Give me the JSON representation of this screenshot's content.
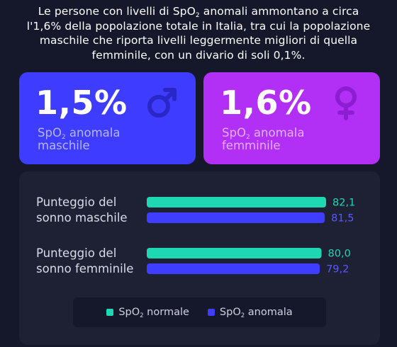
{
  "intro": {
    "line1_a": "Le persone con livelli di SpO",
    "line1_sub": "2",
    "line1_b": " anomali ammontano a circa",
    "line2": "l'1,6% della popolazione totale in Italia,  tra cui la popolazione",
    "line3": "maschile che riporta livelli leggermente migliori di quella",
    "line4": "femminile, con un divario di soli 0,1%."
  },
  "cards": {
    "male": {
      "value": "1,5%",
      "label_pre": "SpO",
      "label_sub": "2",
      "label_post": " anomala",
      "label_line2": "maschile",
      "icon": "male-symbol-icon",
      "color": "#3d3cff"
    },
    "female": {
      "value": "1,6%",
      "label_pre": "SpO",
      "label_sub": "2",
      "label_post": " anomala",
      "label_line2": "femminile",
      "icon": "female-symbol-icon",
      "color": "#b22ff5"
    }
  },
  "chart_data": {
    "type": "bar",
    "orientation": "horizontal",
    "groups": [
      {
        "label_line1": "Punteggio del",
        "label_line2": "sonno maschile",
        "values": [
          {
            "series": "normale",
            "value": 82.1,
            "text": "82,1"
          },
          {
            "series": "anomala",
            "value": 81.5,
            "text": "81,5"
          }
        ]
      },
      {
        "label_line1": "Punteggio del",
        "label_line2": "sonno femminile",
        "values": [
          {
            "series": "normale",
            "value": 80.0,
            "text": "80,0"
          },
          {
            "series": "anomala",
            "value": 79.2,
            "text": "79,2"
          }
        ]
      }
    ],
    "series": [
      {
        "key": "normale",
        "name_pre": "SpO",
        "name_sub": "2",
        "name_post": " normale",
        "color": "#1ed8b4"
      },
      {
        "key": "anomala",
        "name_pre": "SpO",
        "name_sub": "2",
        "name_post": " anomala",
        "color": "#3f3dff"
      }
    ],
    "legend": "bottom-center",
    "grid": false
  }
}
